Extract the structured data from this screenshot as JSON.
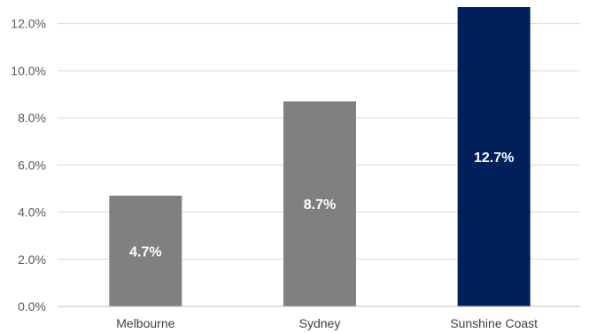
{
  "chart_data": {
    "type": "bar",
    "title": "",
    "xlabel": "",
    "ylabel": "",
    "categories": [
      "Melbourne",
      "Sydney",
      "Sunshine Coast"
    ],
    "values": [
      4.7,
      8.7,
      12.7
    ],
    "data_labels": [
      "4.7%",
      "8.7%",
      "12.7%"
    ],
    "ylim": [
      0,
      12.7
    ],
    "yticks": [
      0,
      2,
      4,
      6,
      8,
      10,
      12
    ],
    "ytick_labels": [
      "0.0%",
      "2.0%",
      "4.0%",
      "6.0%",
      "8.0%",
      "10.0%",
      "12.0%"
    ],
    "grid": true,
    "legend": "none",
    "colors": [
      "#808080",
      "#808080",
      "#00205b"
    ]
  }
}
